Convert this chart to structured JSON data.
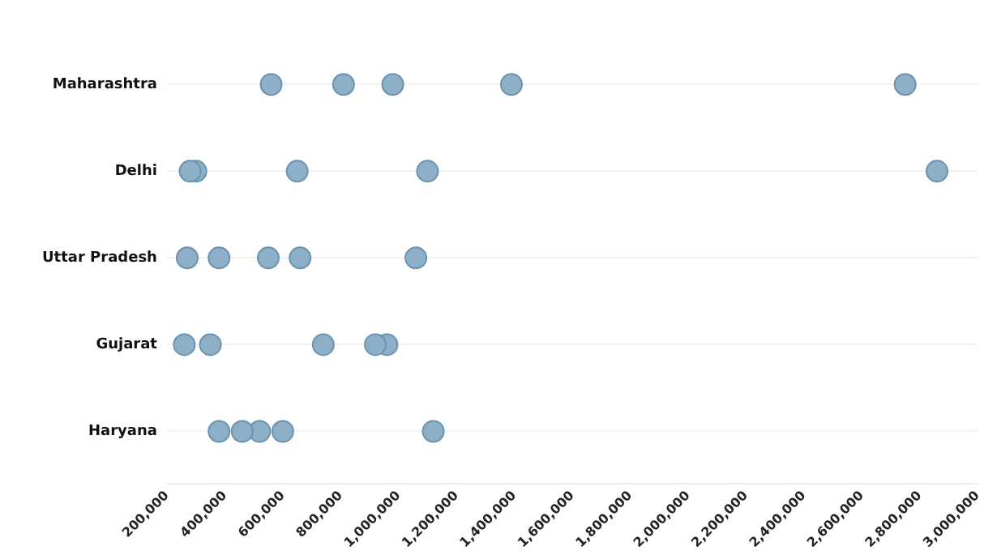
{
  "chart_data": {
    "type": "scatter",
    "orientation": "horizontal",
    "categories": [
      "Maharashtra",
      "Delhi",
      "Uttar Pradesh",
      "Gujarat",
      "Haryana"
    ],
    "series": [
      {
        "color": "#8db0c8",
        "values": [
          560000,
          280000,
          270000,
          260000,
          380000
        ]
      },
      {
        "color": "#8db0c8",
        "values": [
          810000,
          300000,
          380000,
          350000,
          460000
        ]
      },
      {
        "color": "#8db0c8",
        "values": [
          980000,
          650000,
          550000,
          740000,
          520000
        ]
      },
      {
        "color": "#8db0c8",
        "values": [
          1390000,
          1100000,
          660000,
          920000,
          600000
        ]
      },
      {
        "color": "#8db0c8",
        "values": [
          2750000,
          2860000,
          1060000,
          960000,
          1120000
        ]
      }
    ],
    "xlim": [
      200000,
      3000000
    ],
    "xticks": [
      {
        "value": 200000,
        "label": "200,000"
      },
      {
        "value": 400000,
        "label": "400,000"
      },
      {
        "value": 600000,
        "label": "600,000"
      },
      {
        "value": 800000,
        "label": "800,000"
      },
      {
        "value": 1000000,
        "label": "1,000,000"
      },
      {
        "value": 1200000,
        "label": "1,200,000"
      },
      {
        "value": 1400000,
        "label": "1,400,000"
      },
      {
        "value": 1600000,
        "label": "1,600,000"
      },
      {
        "value": 1800000,
        "label": "1,800,000"
      },
      {
        "value": 2000000,
        "label": "2,000,000"
      },
      {
        "value": 2200000,
        "label": "2,200,000"
      },
      {
        "value": 2400000,
        "label": "2,400,000"
      },
      {
        "value": 2600000,
        "label": "2,600,000"
      },
      {
        "value": 2800000,
        "label": "2,800,000"
      },
      {
        "value": 3000000,
        "label": "3,000,000"
      }
    ],
    "grid": "y",
    "legend": false,
    "marker": "circle"
  }
}
